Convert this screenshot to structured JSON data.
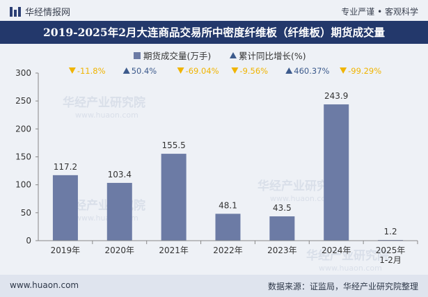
{
  "header": {
    "brand": "华经情报网",
    "tagline": "专业严谨 • 客观科学"
  },
  "title": "2019-2025年2月大连商品交易所中密度纤维板（纤维板）期货成交量",
  "legend": {
    "bar_label": "期货成交量(万手)",
    "growth_label": "累计同比增长(%)"
  },
  "watermark": {
    "cn": "华经产业研究院",
    "en": "www.huaon.com"
  },
  "footer": {
    "website": "www.huaon.com",
    "source": "数据来源：证监局，华经产业研究院整理"
  },
  "colors": {
    "bar": "#6c7ba5",
    "up": "#3c5a8c",
    "down": "#f0b400",
    "title_bg": "#23386b"
  },
  "chart_data": {
    "type": "bar",
    "categories": [
      "2019年",
      "2020年",
      "2021年",
      "2022年",
      "2023年",
      "2024年",
      "2025年\n1-2月"
    ],
    "series": [
      {
        "name": "期货成交量(万手)",
        "values": [
          117.2,
          103.4,
          155.5,
          48.1,
          43.5,
          243.9,
          1.2
        ]
      }
    ],
    "value_labels": [
      "117.2",
      "103.4",
      "155.5",
      "48.1",
      "43.5",
      "243.9",
      "1.2"
    ],
    "growth": {
      "name": "累计同比增长(%)",
      "labels": [
        "-11.8%",
        "50.4%",
        "-69.04%",
        "-9.56%",
        "460.37%",
        "-99.29%"
      ],
      "directions": [
        "down",
        "up",
        "down",
        "down",
        "up",
        "down"
      ]
    },
    "ylim": [
      0,
      300
    ],
    "yticks": [
      0,
      50,
      100,
      150,
      200,
      250,
      300
    ],
    "xlabel": "",
    "ylabel": "",
    "grid": false,
    "legend_position": "top-center"
  }
}
